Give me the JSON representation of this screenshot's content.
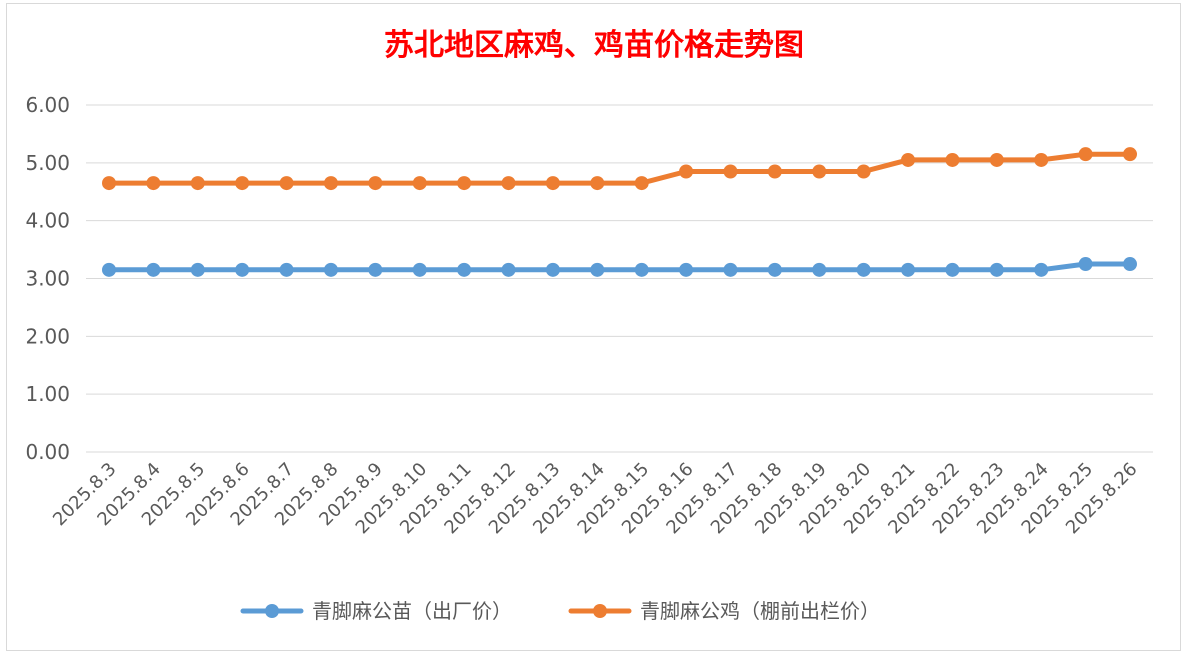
{
  "chart_data": {
    "type": "line",
    "title": "苏北地区麻鸡、鸡苗价格走势图",
    "categories": [
      "2025.8.3",
      "2025.8.4",
      "2025.8.5",
      "2025.8.6",
      "2025.8.7",
      "2025.8.8",
      "2025.8.9",
      "2025.8.10",
      "2025.8.11",
      "2025.8.12",
      "2025.8.13",
      "2025.8.14",
      "2025.8.15",
      "2025.8.16",
      "2025.8.17",
      "2025.8.18",
      "2025.8.19",
      "2025.8.20",
      "2025.8.21",
      "2025.8.22",
      "2025.8.23",
      "2025.8.24",
      "2025.8.25",
      "2025.8.26"
    ],
    "y_ticks": [
      "0.00",
      "1.00",
      "2.00",
      "3.00",
      "4.00",
      "5.00",
      "6.00"
    ],
    "ylim": [
      0,
      6
    ],
    "grid": true,
    "legend_position": "bottom",
    "series": [
      {
        "name": "青脚麻公苗（出厂价）",
        "color": "#5b9bd5",
        "values": [
          3.15,
          3.15,
          3.15,
          3.15,
          3.15,
          3.15,
          3.15,
          3.15,
          3.15,
          3.15,
          3.15,
          3.15,
          3.15,
          3.15,
          3.15,
          3.15,
          3.15,
          3.15,
          3.15,
          3.15,
          3.15,
          3.15,
          3.25,
          3.25
        ]
      },
      {
        "name": "青脚麻公鸡（棚前出栏价）",
        "color": "#ed7d31",
        "values": [
          4.65,
          4.65,
          4.65,
          4.65,
          4.65,
          4.65,
          4.65,
          4.65,
          4.65,
          4.65,
          4.65,
          4.65,
          4.65,
          4.85,
          4.85,
          4.85,
          4.85,
          4.85,
          5.05,
          5.05,
          5.05,
          5.05,
          5.15,
          5.15
        ]
      }
    ]
  }
}
